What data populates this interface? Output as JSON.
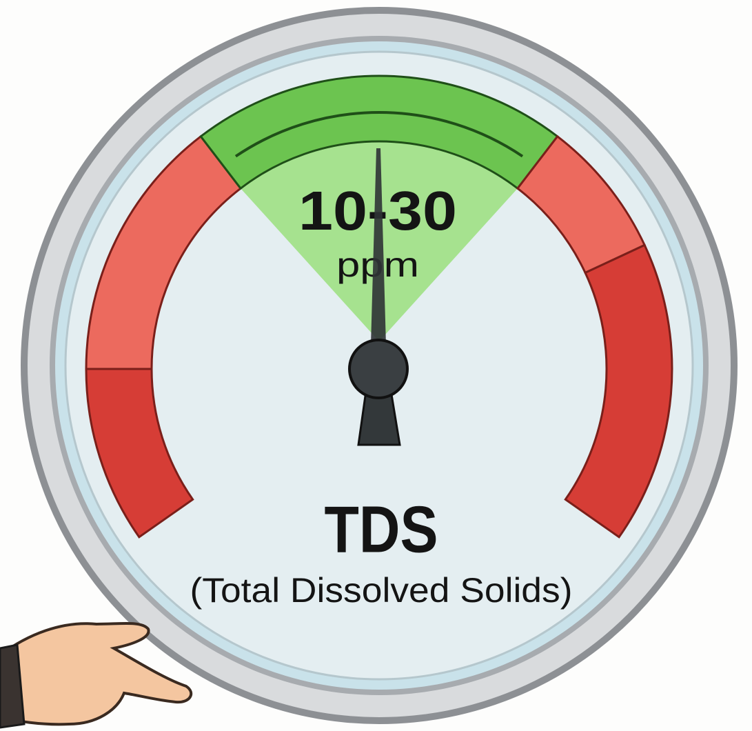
{
  "gauge": {
    "range_label": "10-30",
    "unit": "ppm",
    "title": "TDS",
    "subtitle": "(Total Dissolved Solids)"
  }
}
